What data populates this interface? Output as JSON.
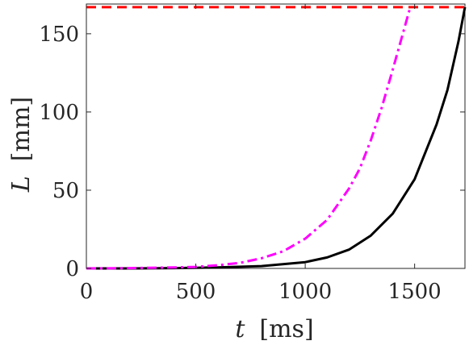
{
  "chart_data": {
    "type": "line",
    "xlabel_var": "t",
    "xlabel_unit": "[ms]",
    "ylabel_var": "L",
    "ylabel_unit": "[mm]",
    "xlim": [
      0,
      1730
    ],
    "ylim": [
      0,
      169
    ],
    "xticks": [
      0,
      500,
      1000,
      1500
    ],
    "yticks": [
      0,
      50,
      100,
      150
    ],
    "grid": false,
    "series": [
      {
        "style": "solid",
        "color": "#000000",
        "x": [
          0,
          200,
          400,
          600,
          800,
          1000,
          1100,
          1200,
          1300,
          1400,
          1500,
          1600,
          1650,
          1700,
          1730
        ],
        "y": [
          0,
          0,
          0.2,
          0.6,
          1.5,
          4.0,
          7.0,
          12.0,
          21.0,
          35.0,
          57.0,
          92.0,
          114.0,
          145.0,
          167.0
        ]
      },
      {
        "style": "dashdot",
        "color": "#ff00ff",
        "x": [
          0,
          200,
          400,
          500,
          600,
          700,
          800,
          900,
          1000,
          1100,
          1200,
          1250,
          1300,
          1350,
          1400,
          1450,
          1480
        ],
        "y": [
          0,
          0.2,
          0.6,
          1.0,
          2.0,
          3.5,
          6.5,
          11.0,
          19.0,
          31.0,
          51.0,
          64.0,
          82.0,
          103.0,
          127.0,
          152.0,
          167.0
        ]
      },
      {
        "style": "dashed",
        "color": "#ff0000",
        "x": [
          0,
          1730
        ],
        "y": [
          167,
          167
        ]
      }
    ]
  }
}
